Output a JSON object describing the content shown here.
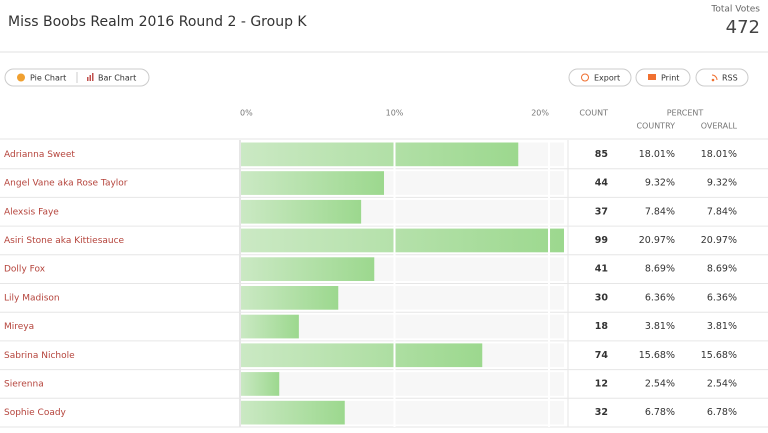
{
  "header": {
    "title": "Miss Boobs Realm 2016 Round 2 - Group K",
    "total_label": "Total Votes",
    "total_value": 472
  },
  "buttons": {
    "pie": "Pie Chart",
    "bar": "Bar Chart",
    "export": "Export",
    "print": "Print",
    "rss": "RSS"
  },
  "table": {
    "columns": {
      "count": "COUNT",
      "percent": "PERCENT",
      "country": "COUNTRY",
      "overall": "OVERALL"
    },
    "xlim": [
      0,
      20.97
    ],
    "xticks": [
      {
        "value": 0,
        "label": "0%"
      },
      {
        "value": 10,
        "label": "10%"
      },
      {
        "value": 20,
        "label": "20%"
      }
    ],
    "names": [
      "Adrianna Sweet",
      "Angel Vane aka Rose Taylor",
      "Alexsis Faye",
      "Asiri Stone aka Kittiesauce",
      "Dolly Fox",
      "Lily Madison",
      "Mireya",
      "Sabrina Nichole",
      "Sierenna",
      "Sophie Coady"
    ],
    "counts": [
      85,
      44,
      37,
      99,
      41,
      30,
      18,
      74,
      12,
      32
    ],
    "country": {
      "values": [
        18.01,
        9.32,
        7.84,
        20.97,
        8.69,
        6.36,
        3.81,
        15.68,
        2.54,
        6.78
      ],
      "value_labels": [
        "18.01%",
        "9.32%",
        "7.84%",
        "20.97%",
        "8.69%",
        "6.36%",
        "3.81%",
        "15.68%",
        "2.54%",
        "6.78%"
      ]
    },
    "overall": {
      "values": [
        18.01,
        9.32,
        7.84,
        20.97,
        8.69,
        6.36,
        3.81,
        15.68,
        2.54,
        6.78
      ],
      "value_labels": [
        "18.01%",
        "9.32%",
        "7.84%",
        "20.97%",
        "8.69%",
        "6.36%",
        "3.81%",
        "15.68%",
        "2.54%",
        "6.78%"
      ]
    }
  }
}
